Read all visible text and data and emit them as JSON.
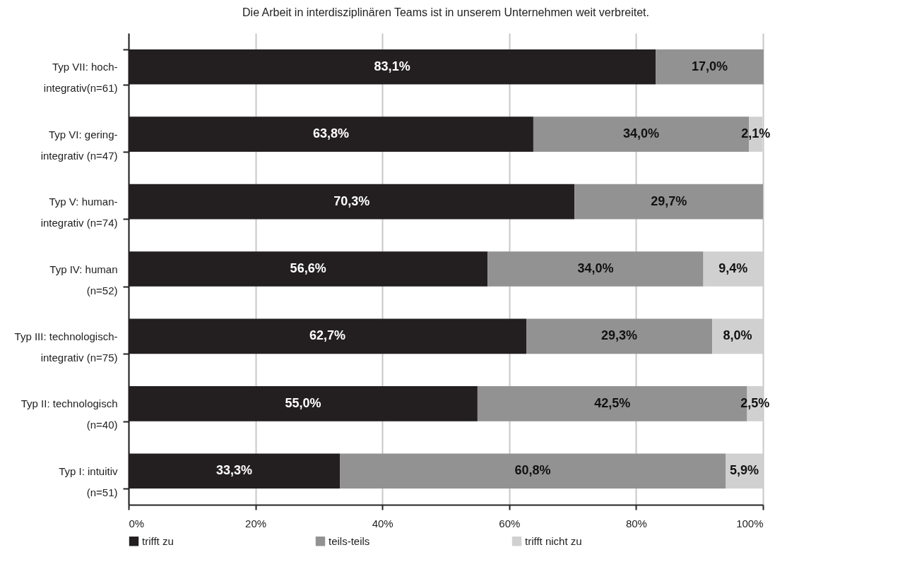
{
  "chart_data": {
    "type": "bar",
    "orientation": "horizontal",
    "stacked": true,
    "title": "Die Arbeit in interdisziplinären Teams ist in unserem Unternehmen weit verbreitet.",
    "categories": [
      "Typ VII: hoch-\nintegrativ(n=61)",
      "Typ VI: gering-\nintegrativ (n=47)",
      "Typ V: human-\nintegrativ (n=74)",
      "Typ IV: human\n(n=52)",
      "Typ III: technologisch-\nintegrativ (n=75)",
      "Typ II: technologisch\n(n=40)",
      "Typ I: intuitiv\n(n=51)"
    ],
    "series": [
      {
        "name": "trifft zu",
        "color": "#231f20",
        "values": [
          83.1,
          63.8,
          70.3,
          56.6,
          62.7,
          55.0,
          33.3
        ],
        "value_labels": [
          "83,1%",
          "63,8%",
          "70,3%",
          "56,6%",
          "62,7%",
          "55,0%",
          "33,3%"
        ]
      },
      {
        "name": "teils-teils",
        "color": "#929292",
        "values": [
          17.0,
          34.0,
          29.7,
          34.0,
          29.3,
          42.5,
          60.8
        ],
        "value_labels": [
          "17,0%",
          "34,0%",
          "29,7%",
          "34,0%",
          "29,3%",
          "42,5%",
          "60,8%"
        ]
      },
      {
        "name": "trifft nicht zu",
        "color": "#d0d0d0",
        "values": [
          null,
          2.1,
          null,
          9.4,
          8.0,
          2.5,
          5.9
        ],
        "value_labels": [
          null,
          "2,1%",
          null,
          "9,4%",
          "8,0%",
          "2,5%",
          "5,9%"
        ]
      }
    ],
    "xlim": [
      0,
      100
    ],
    "xticks": [
      {
        "value": 0,
        "label": "0%"
      },
      {
        "value": 20,
        "label": "20%"
      },
      {
        "value": 40,
        "label": "40%"
      },
      {
        "value": 60,
        "label": "60%"
      },
      {
        "value": 80,
        "label": "80%"
      },
      {
        "value": 100,
        "label": "100%"
      }
    ],
    "grid": "x",
    "legend": "bottom"
  }
}
